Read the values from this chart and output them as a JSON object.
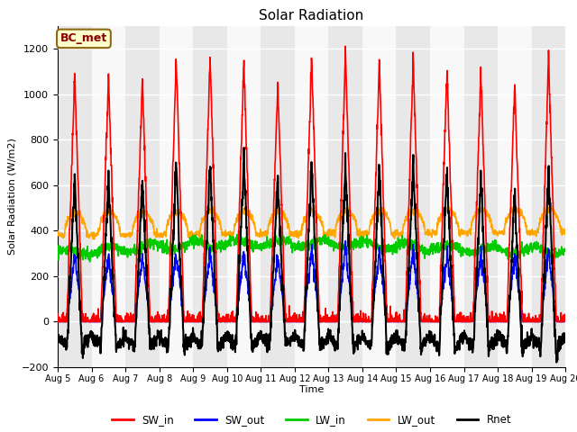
{
  "title": "Solar Radiation",
  "ylabel": "Solar Radiation (W/m2)",
  "xlabel": "Time",
  "ylim": [
    -200,
    1300
  ],
  "yticks": [
    -200,
    0,
    200,
    400,
    600,
    800,
    1000,
    1200
  ],
  "start_day": 5,
  "end_day": 20,
  "n_days": 15,
  "pts_per_day": 144,
  "station_label": "BC_met",
  "series_colors": {
    "SW_in": "#ff0000",
    "SW_out": "#0000ff",
    "LW_in": "#00cc00",
    "LW_out": "#ffa500",
    "Rnet": "#000000"
  },
  "background_color": "#ffffff",
  "band_color_even": "#e8e8e8",
  "band_color_odd": "#f8f8f8",
  "sw_peaks": [
    1090,
    1080,
    1060,
    1160,
    1165,
    1160,
    1050,
    1170,
    1180,
    1150,
    1165,
    1120,
    1100,
    1050,
    1165
  ],
  "sw_out_ratio": 0.27,
  "lw_in_base": 300,
  "lw_out_base": 380
}
